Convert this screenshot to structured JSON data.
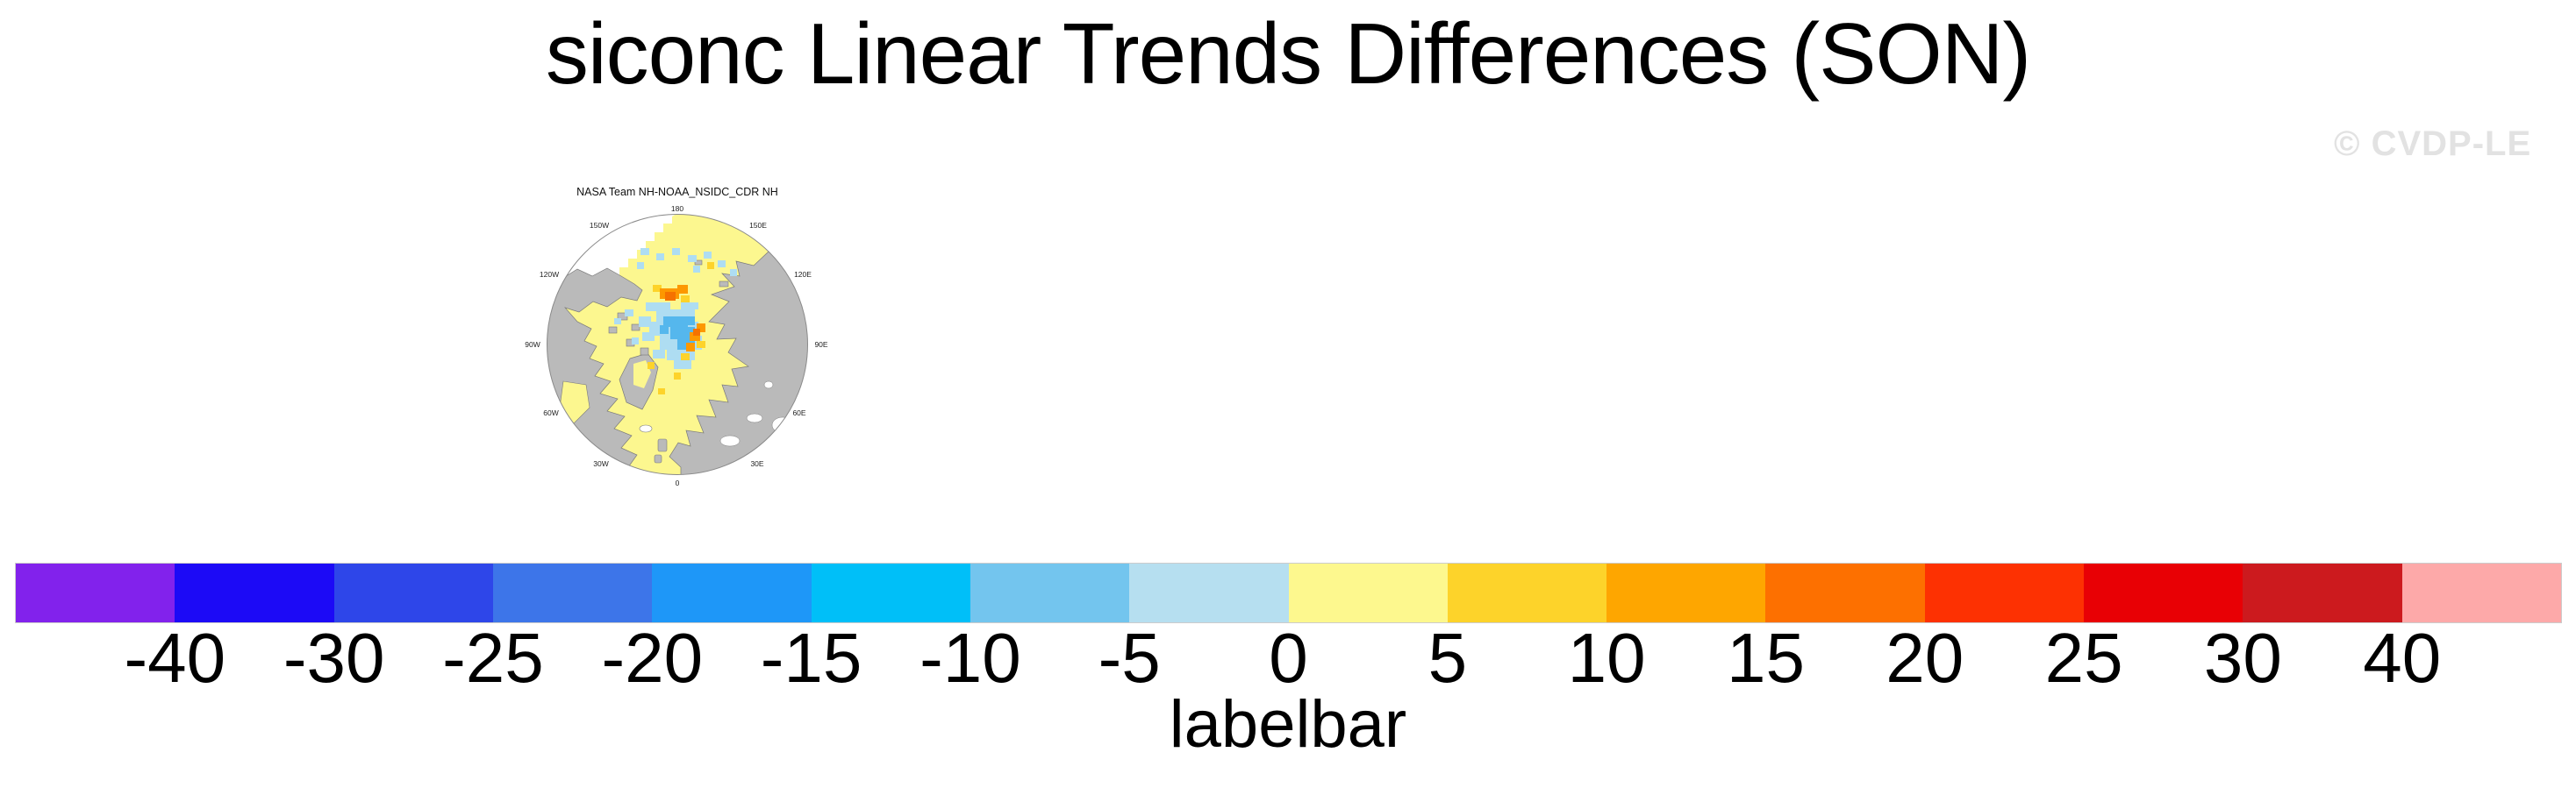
{
  "figure": {
    "title": "siconc Linear Trends Differences (SON)",
    "watermark": "© CVDP-LE"
  },
  "map_panel": {
    "title": "NASA Team NH-NOAA_NSIDC_CDR NH",
    "lon_labels": [
      "180",
      "150W",
      "150E",
      "120W",
      "120E",
      "90W",
      "90E",
      "60W",
      "60E",
      "30W",
      "30E",
      "0"
    ],
    "colors": {
      "land": "#BABABA",
      "coastline": "#7A7A7A",
      "ocean_band_0_5": "#FCF78F",
      "ice_loss_light_blue": "#AEDDF2",
      "ice_loss_mid_blue": "#55B7ED",
      "ice_gain_gold": "#FDD32A",
      "ice_gain_orange": "#FD9800",
      "ice_gain_dark_orange": "#F57200",
      "no_data": "#FFFFFF"
    }
  },
  "chart_data": {
    "type": "heatmap",
    "title": "siconc Linear Trends Differences (SON)",
    "subtitle": "NASA Team NH-NOAA_NSIDC_CDR NH",
    "projection": "north polar stereographic",
    "description": "Arctic polar map of sea-ice concentration linear-trend differences for SON. Most data ocean falls in the 0 to 5 band (pale yellow); a cluster of cells near the pole lies in the -15 to 0 bands (light and medium blue); scattered 5 to 25 band cells (gold, orange) sit along the Siberian coast and east of the pole; land is gray and no-data open ocean is white.",
    "legend_position": "bottom",
    "colorbar": {
      "caption": "labelbar",
      "orientation": "horizontal",
      "n_boxes": 16,
      "levels": [
        -40,
        -30,
        -25,
        -20,
        -15,
        -10,
        -5,
        0,
        5,
        10,
        15,
        20,
        25,
        30,
        40
      ],
      "tick_labels": [
        "-40",
        "-30",
        "-25",
        "-20",
        "-15",
        "-10",
        "-5",
        "0",
        "5",
        "10",
        "15",
        "20",
        "25",
        "30",
        "40"
      ],
      "colors": [
        "#8222EC",
        "#1C0AF6",
        "#2E46E9",
        "#3D75E9",
        "#1E97F8",
        "#00BFF8",
        "#73C5EE",
        "#B6DFF0",
        "#FDF88E",
        "#FDD32A",
        "#FEA600",
        "#FD7000",
        "#FD3102",
        "#E80005",
        "#CC1A1E",
        "#FDA9A9"
      ]
    }
  }
}
